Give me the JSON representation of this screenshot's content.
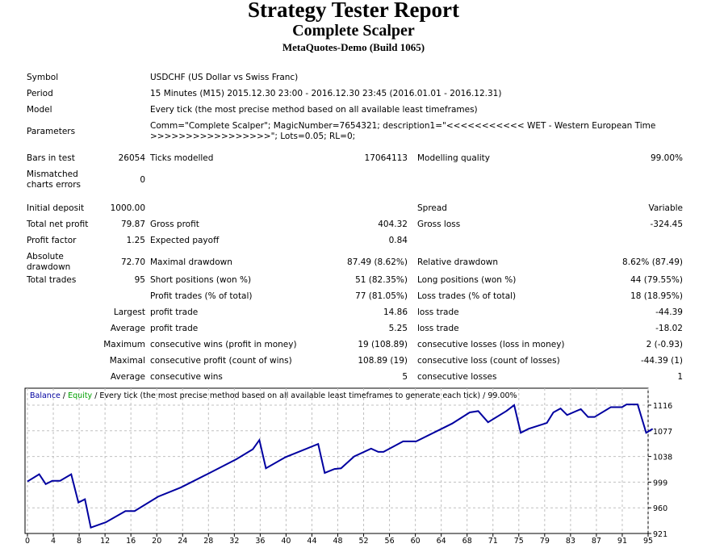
{
  "header": {
    "title": "Strategy Tester Report",
    "expert_name": "Complete Scalper",
    "server": "MetaQuotes-Demo (Build 1065)"
  },
  "info": [
    {
      "label": "Symbol",
      "value": "USDCHF (US Dollar vs Swiss Franc)"
    },
    {
      "label": "Period",
      "value": "15 Minutes (M15) 2015.12.30 23:00 - 2016.12.30 23:45 (2016.01.01 - 2016.12.31)"
    },
    {
      "label": "Model",
      "value": "Every tick (the most precise method based on all available least timeframes)"
    },
    {
      "label": "Parameters",
      "value": "Comm=\"Complete Scalper\"; MagicNumber=7654321; description1=\"<<<<<<<<<<< WET - Western European Time >>>>>>>>>>>>>>>>>\"; Lots=0.05; RL=0;"
    }
  ],
  "stats": [
    [
      "Bars in test",
      "26054",
      "Ticks modelled",
      "17064113",
      "Modelling quality",
      "99.00%"
    ],
    [
      "Mismatched charts errors",
      "0",
      "",
      "",
      "",
      ""
    ],
    [
      "Initial deposit",
      "1000.00",
      "",
      "",
      "Spread",
      "Variable"
    ],
    [
      "Total net profit",
      "79.87",
      "Gross profit",
      "404.32",
      "Gross loss",
      "-324.45"
    ],
    [
      "Profit factor",
      "1.25",
      "Expected payoff",
      "0.84",
      "",
      ""
    ],
    [
      "Absolute drawdown",
      "72.70",
      "Maximal drawdown",
      "87.49 (8.62%)",
      "Relative drawdown",
      "8.62% (87.49)"
    ],
    [
      "Total trades",
      "95",
      "Short positions (won %)",
      "51 (82.35%)",
      "Long positions (won %)",
      "44 (79.55%)"
    ]
  ],
  "trade_stats": [
    [
      "",
      "Profit trades (% of total)",
      "77 (81.05%)",
      "Loss trades (% of total)",
      "18 (18.95%)"
    ],
    [
      "Largest",
      "profit trade",
      "14.86",
      "loss trade",
      "-44.39"
    ],
    [
      "Average",
      "profit trade",
      "5.25",
      "loss trade",
      "-18.02"
    ],
    [
      "Maximum",
      "consecutive wins (profit in money)",
      "19 (108.89)",
      "consecutive losses (loss in money)",
      "2 (-0.93)"
    ],
    [
      "Maximal",
      "consecutive profit (count of wins)",
      "108.89 (19)",
      "consecutive loss (count of losses)",
      "-44.39 (1)"
    ],
    [
      "Average",
      "consecutive wins",
      "5",
      "consecutive losses",
      "1"
    ]
  ],
  "chart_data": {
    "type": "line",
    "legend": {
      "balance": "Balance",
      "sep1": " / ",
      "equity": "Equity",
      "rest": " / Every tick (the most precise method based on all available least timeframes to generate each tick) / 99.00%"
    },
    "colors": {
      "balance": "#0000a0",
      "equity": "#00a000",
      "grid": "#c0c0c0"
    },
    "xlabel": "",
    "ylabel": "",
    "x_ticks": [
      "0",
      "4",
      "8",
      "12",
      "16",
      "20",
      "24",
      "28",
      "32",
      "36",
      "40",
      "44",
      "48",
      "52",
      "56",
      "60",
      "64",
      "68",
      "71",
      "75",
      "79",
      "83",
      "87",
      "91",
      "95"
    ],
    "y_ticks": [
      "1116",
      "1077",
      "1038",
      "999",
      "960",
      "921"
    ],
    "xlim": [
      0,
      95
    ],
    "ylim": [
      921,
      1116
    ],
    "grid": true,
    "series": [
      {
        "name": "Balance",
        "points": [
          [
            0,
            1000
          ],
          [
            1.8,
            1011
          ],
          [
            2.8,
            996
          ],
          [
            3.8,
            1001
          ],
          [
            5,
            1001
          ],
          [
            6.7,
            1011
          ],
          [
            7.8,
            968
          ],
          [
            8.8,
            973
          ],
          [
            9.7,
            930
          ],
          [
            12,
            938
          ],
          [
            15,
            955
          ],
          [
            16.4,
            955
          ],
          [
            20,
            977
          ],
          [
            23.5,
            991
          ],
          [
            27.5,
            1011
          ],
          [
            32,
            1034
          ],
          [
            34.5,
            1049
          ],
          [
            35.5,
            1063
          ],
          [
            36.5,
            1020
          ],
          [
            39.5,
            1037
          ],
          [
            44.5,
            1057
          ],
          [
            45.5,
            1013
          ],
          [
            47,
            1019
          ],
          [
            48,
            1020
          ],
          [
            50,
            1038
          ],
          [
            52.6,
            1050
          ],
          [
            53.7,
            1045
          ],
          [
            54.5,
            1045
          ],
          [
            57.5,
            1061
          ],
          [
            59.5,
            1061
          ],
          [
            65,
            1088
          ],
          [
            67.7,
            1105
          ],
          [
            69,
            1107
          ],
          [
            70.5,
            1090
          ],
          [
            73.3,
            1107
          ],
          [
            74.5,
            1116
          ],
          [
            75.5,
            1074
          ],
          [
            76.7,
            1080
          ],
          [
            79.5,
            1089
          ],
          [
            80.5,
            1105
          ],
          [
            81.6,
            1111
          ],
          [
            82.6,
            1101
          ],
          [
            84.7,
            1110
          ],
          [
            85.8,
            1098
          ],
          [
            86.8,
            1098
          ],
          [
            89.3,
            1113
          ],
          [
            91,
            1113
          ],
          [
            91.7,
            1117
          ],
          [
            93.4,
            1117
          ],
          [
            94.7,
            1074
          ],
          [
            95.7,
            1080
          ]
        ]
      }
    ]
  }
}
